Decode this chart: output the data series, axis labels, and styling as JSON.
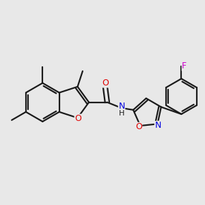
{
  "background_color": "#e8e8e8",
  "bond_color": "#1a1a1a",
  "atom_colors": {
    "O": "#e00000",
    "N": "#0000e0",
    "F": "#cc00cc",
    "C": "#1a1a1a",
    "H": "#1a1a1a"
  },
  "lw": 1.6,
  "fs": 8.5,
  "dbo": 0.055
}
